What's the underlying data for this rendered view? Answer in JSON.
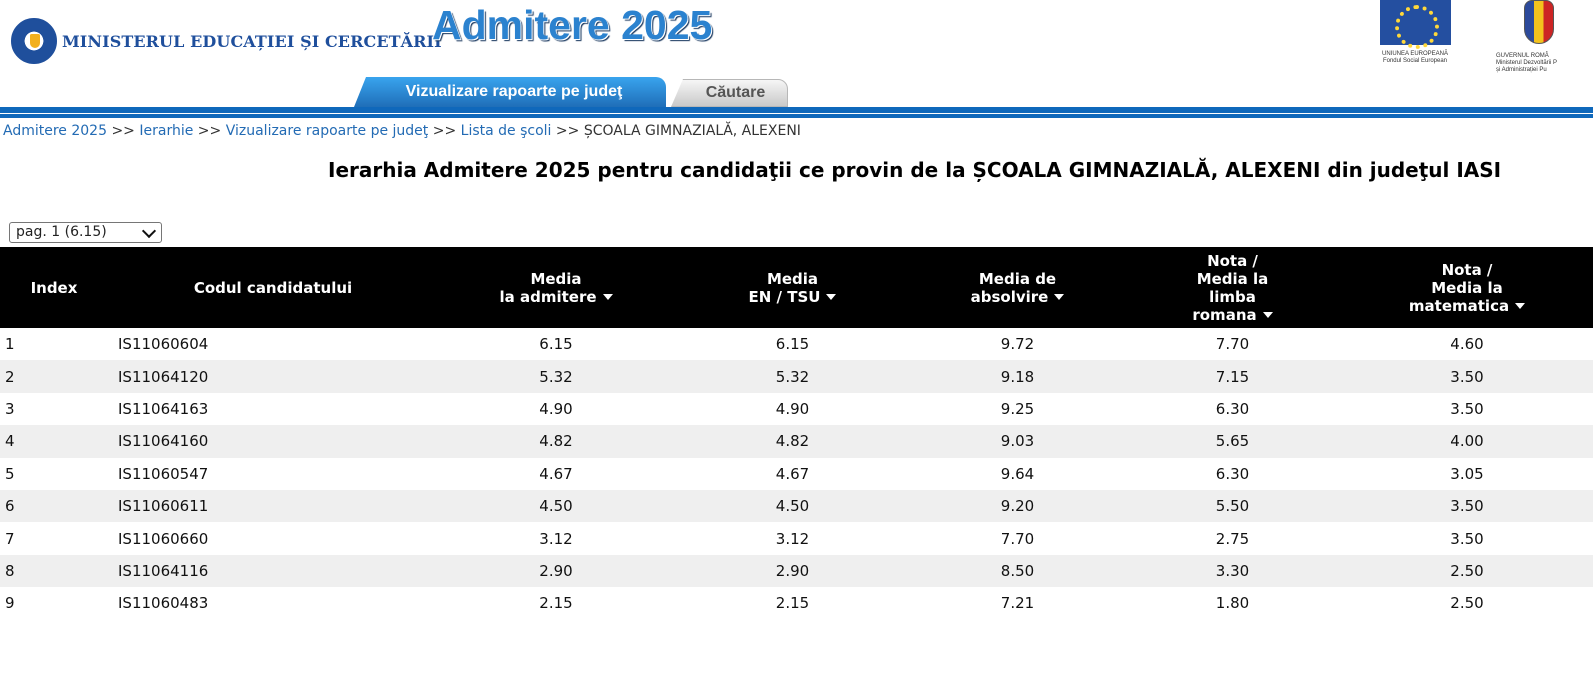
{
  "header": {
    "ministry_name": "MINISTERUL EDUCAȚIEI ȘI CERCETĂRII",
    "app_title": "Admitere 2025",
    "eu_caption": "UNIUNEA EUROPEANĂ\nFondul Social European",
    "gov_caption": "GUVERNUL ROMÂ\nMinisterul Dezvoltării P\nși Administrației Pu"
  },
  "tabs": [
    {
      "label": "Vizualizare rapoarte pe judeţ",
      "active": true
    },
    {
      "label": "Căutare",
      "active": false
    }
  ],
  "breadcrumb": {
    "items": [
      "Admitere 2025",
      "Ierarhie",
      "Vizualizare rapoarte pe judeţ",
      "Lista de şcoli"
    ],
    "separator": ">>",
    "current": "ȘCOALA GIMNAZIALĂ, ALEXENI"
  },
  "page_title": "Ierarhia Admitere 2025 pentru candidaţii ce provin de la ȘCOALA GIMNAZIALĂ, ALEXENI din judeţul IASI",
  "page_select": {
    "selected": "pag. 1 (6.15)"
  },
  "table": {
    "columns": [
      {
        "label": "Index",
        "sortable": false
      },
      {
        "label": "Codul candidatului",
        "sortable": false
      },
      {
        "label": "Media\nla admitere",
        "sortable": true
      },
      {
        "label": "Media\nEN / TSU",
        "sortable": true
      },
      {
        "label": "Media de\nabsolvire",
        "sortable": true
      },
      {
        "label": "Nota /\nMedia la\nlimba\nromana",
        "sortable": true
      },
      {
        "label": "Nota /\nMedia la\nmatematica",
        "sortable": true
      }
    ],
    "rows": [
      [
        "1",
        "IS11060604",
        "6.15",
        "6.15",
        "9.72",
        "7.70",
        "4.60"
      ],
      [
        "2",
        "IS11064120",
        "5.32",
        "5.32",
        "9.18",
        "7.15",
        "3.50"
      ],
      [
        "3",
        "IS11064163",
        "4.90",
        "4.90",
        "9.25",
        "6.30",
        "3.50"
      ],
      [
        "4",
        "IS11064160",
        "4.82",
        "4.82",
        "9.03",
        "5.65",
        "4.00"
      ],
      [
        "5",
        "IS11060547",
        "4.67",
        "4.67",
        "9.64",
        "6.30",
        "3.05"
      ],
      [
        "6",
        "IS11060611",
        "4.50",
        "4.50",
        "9.20",
        "5.50",
        "3.50"
      ],
      [
        "7",
        "IS11060660",
        "3.12",
        "3.12",
        "7.70",
        "2.75",
        "3.50"
      ],
      [
        "8",
        "IS11064116",
        "2.90",
        "2.90",
        "8.50",
        "3.30",
        "2.50"
      ],
      [
        "9",
        "IS11060483",
        "2.15",
        "2.15",
        "7.21",
        "1.80",
        "2.50"
      ]
    ]
  },
  "colors": {
    "brand_blue": "#1f4f9c",
    "tab_blue": "#2b8ee0",
    "header_black": "#000000",
    "row_alt": "#efefef",
    "link": "#236bb4"
  }
}
